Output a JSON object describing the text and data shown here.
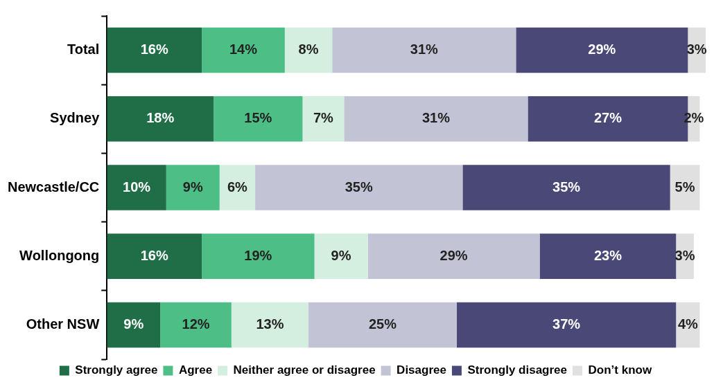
{
  "chart_data": {
    "type": "bar",
    "orientation": "horizontal",
    "stacked": true,
    "legend": "bottom",
    "grid": false,
    "categories": [
      "Total",
      "Sydney",
      "Newcastle/CC",
      "Wollongong",
      "Other NSW"
    ],
    "series": [
      {
        "name": "Strongly agree",
        "color": "#1f6e48",
        "values": [
          16,
          18,
          10,
          16,
          9
        ],
        "value_labels": [
          "16%",
          "18%",
          "10%",
          "16%",
          "9%"
        ]
      },
      {
        "name": "Agree",
        "color": "#4dbf86",
        "values": [
          14,
          15,
          9,
          19,
          12
        ],
        "value_labels": [
          "14%",
          "15%",
          "9%",
          "19%",
          "12%"
        ]
      },
      {
        "name": "Neither agree or disagree",
        "color": "#d4eedf",
        "values": [
          8,
          7,
          6,
          9,
          13
        ],
        "value_labels": [
          "8%",
          "7%",
          "6%",
          "9%",
          "13%"
        ]
      },
      {
        "name": "Disagree",
        "color": "#c3c3d6",
        "values": [
          31,
          31,
          35,
          29,
          25
        ],
        "value_labels": [
          "31%",
          "31%",
          "35%",
          "29%",
          "25%"
        ]
      },
      {
        "name": "Strongly disagree",
        "color": "#4a4877",
        "values": [
          29,
          27,
          35,
          23,
          37
        ],
        "value_labels": [
          "29%",
          "27%",
          "35%",
          "23%",
          "37%"
        ]
      },
      {
        "name": "Don’t know",
        "color": "#e0e0e0",
        "values": [
          3,
          2,
          5,
          3,
          4
        ],
        "value_labels": [
          "3%",
          "2%",
          "5%",
          "3%",
          "4%"
        ]
      }
    ]
  }
}
